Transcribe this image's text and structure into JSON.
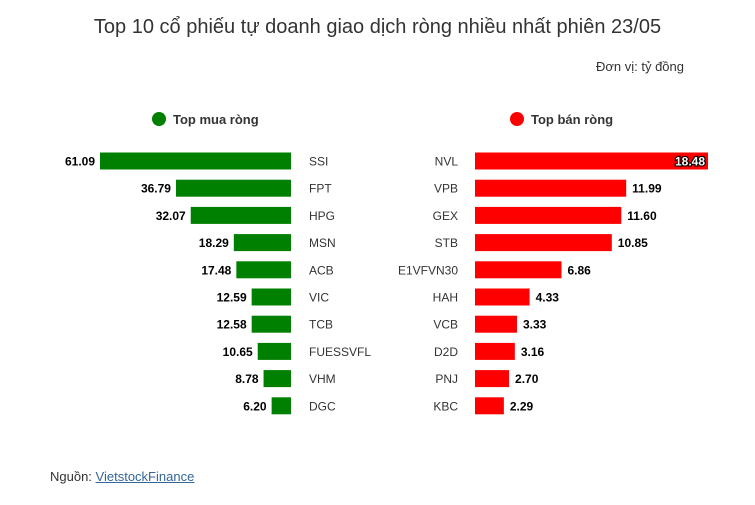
{
  "title": "Top 10 cổ phiếu tự doanh giao dịch ròng nhiều nhất phiên 23/05",
  "unit": "Đơn vị: tỷ đồng",
  "source": {
    "label": "Nguồn:",
    "link_text": "VietstockFinance"
  },
  "colors": {
    "buy": "#008000",
    "sell": "#ff0000"
  },
  "chart_data": [
    {
      "type": "bar",
      "legend": "Top mua ròng",
      "legend_position": "top",
      "orientation": "horizontal",
      "direction": "right-to-left",
      "color": "#008000",
      "categories": [
        "SSI",
        "FPT",
        "HPG",
        "MSN",
        "ACB",
        "VIC",
        "TCB",
        "FUESSVFL",
        "VHM",
        "DGC"
      ],
      "values": [
        61.09,
        36.79,
        32.07,
        18.29,
        17.48,
        12.59,
        12.58,
        10.65,
        8.78,
        6.2
      ],
      "value_labels": [
        "61.09",
        "36.79",
        "32.07",
        "18.29",
        "17.48",
        "12.59",
        "12.58",
        "10.65",
        "8.78",
        "6.20"
      ],
      "xlim": [
        0,
        61.09
      ],
      "grid": false
    },
    {
      "type": "bar",
      "legend": "Top bán ròng",
      "legend_position": "top",
      "orientation": "horizontal",
      "direction": "left-to-right",
      "color": "#ff0000",
      "categories": [
        "NVL",
        "VPB",
        "GEX",
        "STB",
        "E1VFVN30",
        "HAH",
        "VCB",
        "D2D",
        "PNJ",
        "KBC"
      ],
      "values": [
        18.48,
        11.99,
        11.6,
        10.85,
        6.86,
        4.33,
        3.33,
        3.16,
        2.7,
        2.29
      ],
      "value_labels": [
        "18.48",
        "11.99",
        "11.60",
        "10.85",
        "6.86",
        "4.33",
        "3.33",
        "3.16",
        "2.70",
        "2.29"
      ],
      "xlim": [
        0,
        18.48
      ],
      "grid": false
    }
  ]
}
